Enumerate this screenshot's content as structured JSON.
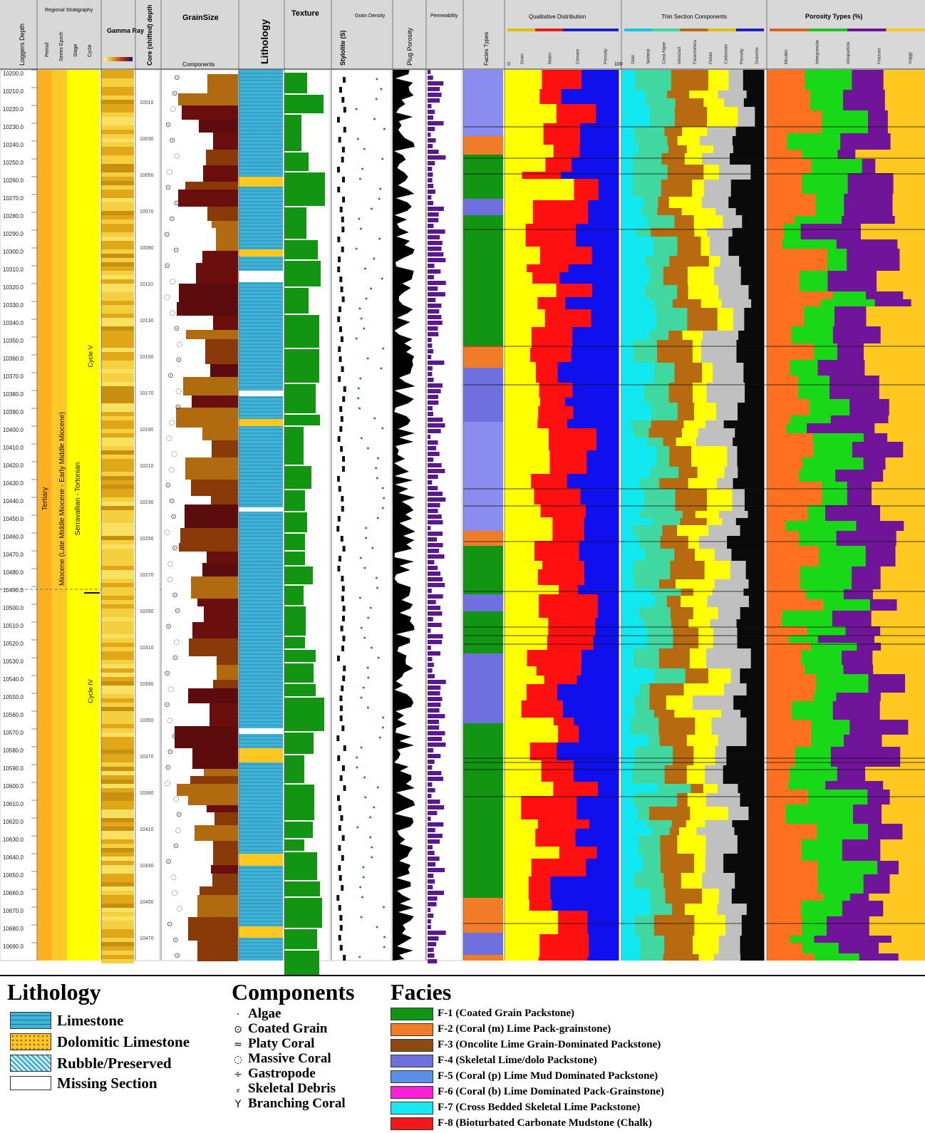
{
  "headers": {
    "logger_depth": "Loggers Depth",
    "core_depth": "Core (shifted) depth",
    "grain_size": "GrainSize",
    "components": "Components",
    "lithology": "Lithology",
    "texture": "Texture",
    "stylolite": "Stylolite (S)",
    "grain_density": "Grain Density",
    "plug_porosity": "Plug Porosity",
    "permeability": "Permeability",
    "facies_types": "Facies Types",
    "qualitative_distribution": "Qualitative Distribution",
    "thin_section_components": "Thin Section Components",
    "porosity_types": "Porosity Types (%)",
    "gamma_ray": "Gamma Ray",
    "regional_stratigraphy": "Regional Stratigraphy",
    "period": "Period",
    "series_epoch": "Series Epoch",
    "stage": "Stage",
    "cycle": "Cycle"
  },
  "qual_cols": [
    "Grain",
    "Matrix",
    "Cement",
    "Porosity"
  ],
  "ts_cols": [
    "Ooid",
    "Skeletal",
    "Coral Algae",
    "Intraclast",
    "Foraminifera",
    "Peloid",
    "Carbonate",
    "Porosity",
    "Dolomite"
  ],
  "por_cols": [
    "Mouldic",
    "Intergranular",
    "Intraparticle",
    "Fracture",
    "Vuggy"
  ],
  "scale": {
    "zero": "0",
    "hundred": "100"
  },
  "strat": {
    "period": "Tertiary",
    "series": "Miocene (Late Middle Miocene - Early Middle Miocene)",
    "stage": "Serravallian - Tortonian",
    "cycle_upper": "Cycle V",
    "cycle_lower": "Cycle IV"
  },
  "depths": [
    "10200.0",
    "10210.0",
    "10220.0",
    "10230.0",
    "10240.0",
    "10250.0",
    "10260.0",
    "10270.0",
    "10280.0",
    "10290.0",
    "10300.0",
    "10310.0",
    "10320.0",
    "10330.0",
    "10340.0",
    "10350.0",
    "10360.0",
    "10370.0",
    "10380.0",
    "10390.0",
    "10400.0",
    "10410.0",
    "10420.0",
    "10430.0",
    "10440.0",
    "10450.0",
    "10460.0",
    "10470.0",
    "10480.0",
    "10490.0",
    "10500.0",
    "10510.0",
    "10520.0",
    "10530.0",
    "10540.0",
    "10550.0",
    "10560.0",
    "10570.0",
    "10580.0",
    "10590.0",
    "10600.0",
    "10610.0",
    "10620.0",
    "10630.0",
    "10640.0",
    "10650.0",
    "10660.0",
    "10670.0",
    "10680.0",
    "10690.0"
  ],
  "core_depths": [
    "10010",
    "10030",
    "10050",
    "10070",
    "10090",
    "10110",
    "10130",
    "10150",
    "10170",
    "10190",
    "10210",
    "10230",
    "10250",
    "10270",
    "10290",
    "10310",
    "10330",
    "10350",
    "10370",
    "10390",
    "10410",
    "10430",
    "10450",
    "10470"
  ],
  "legend": {
    "lithology_title": "Lithology",
    "lithology": [
      "Limestone",
      "Dolomitic Limestone",
      "Rubble/Preserved",
      "Missing Section"
    ],
    "components_title": "Components",
    "components": [
      {
        "label": "Algae",
        "icon": "algae-icon",
        "glyph": "·"
      },
      {
        "label": "Coated Grain",
        "icon": "coated-grain-icon",
        "glyph": "⊙"
      },
      {
        "label": "Platy Coral",
        "icon": "platy-coral-icon",
        "glyph": "≈"
      },
      {
        "label": "Massive Coral",
        "icon": "massive-coral-icon",
        "glyph": "◌"
      },
      {
        "label": "Gastropode",
        "icon": "gastropode-icon",
        "glyph": "∻"
      },
      {
        "label": "Skeletal Debris",
        "icon": "skeletal-debris-icon",
        "glyph": "⸗"
      },
      {
        "label": "Branching Coral",
        "icon": "branching-coral-icon",
        "glyph": "Y"
      }
    ],
    "facies_title": "Facies",
    "facies": [
      {
        "label": "F-1 (Coated Grain Packstone)",
        "color": "#129512"
      },
      {
        "label": "F-2 (Coral (m) Lime Pack-grainstone)",
        "color": "#f07c28"
      },
      {
        "label": "F-3 (Oncolite Lime Grain-Dominated Packstone)",
        "color": "#8a4a10"
      },
      {
        "label": "F-4 (Skeletal Lime/dolo Packstone)",
        "color": "#6f6fe0"
      },
      {
        "label": "F-5 (Coral (p) Lime Mud Dominated Packstone)",
        "color": "#5b8ee6"
      },
      {
        "label": "F-6 (Coral (b) Lime Dominated Pack-Grainstone)",
        "color": "#ff1fd9"
      },
      {
        "label": "F-7 (Cross Bedded Skeletal Lime Packstone)",
        "color": "#18e8f0"
      },
      {
        "label": "F-8 (Bioturbated Carbonate Mudstone (Chalk)",
        "color": "#f01818"
      }
    ]
  },
  "colors": {
    "yellow": "#ffff00",
    "red": "#ff1010",
    "blue": "#1010ee",
    "cyan": "#12e8f0",
    "aqua": "#40d8a0",
    "brown": "#b86a10",
    "orange": "#ff7020",
    "green": "#18d818",
    "purple": "#70149a",
    "gold": "#ffc820",
    "limestone": "#3fb4d8",
    "facies_green": "#129512"
  }
}
